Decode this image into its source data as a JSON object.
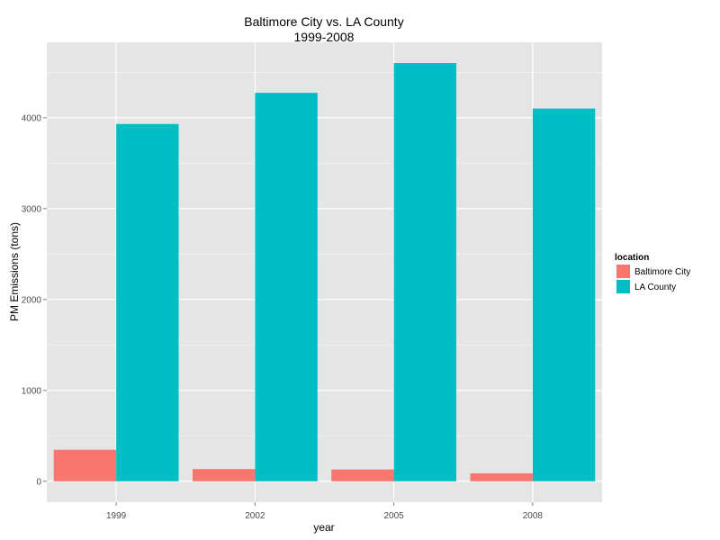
{
  "chart_data": {
    "type": "bar",
    "title": "Baltimore City vs. LA County",
    "subtitle": "1999-2008",
    "xlabel": "year",
    "ylabel": "PM Emissions (tons)",
    "categories": [
      "1999",
      "2002",
      "2005",
      "2008"
    ],
    "series": [
      {
        "name": "Baltimore City",
        "color": "#F8766D",
        "values": [
          347,
          134,
          130,
          88
        ]
      },
      {
        "name": "LA County",
        "color": "#00BFC4",
        "values": [
          3931,
          4274,
          4602,
          4101
        ]
      }
    ],
    "ylim": [
      -230,
      4830
    ],
    "yticks": [
      0,
      1000,
      2000,
      3000,
      4000
    ],
    "grid": true,
    "legend": {
      "title": "location",
      "placement": "right"
    }
  }
}
